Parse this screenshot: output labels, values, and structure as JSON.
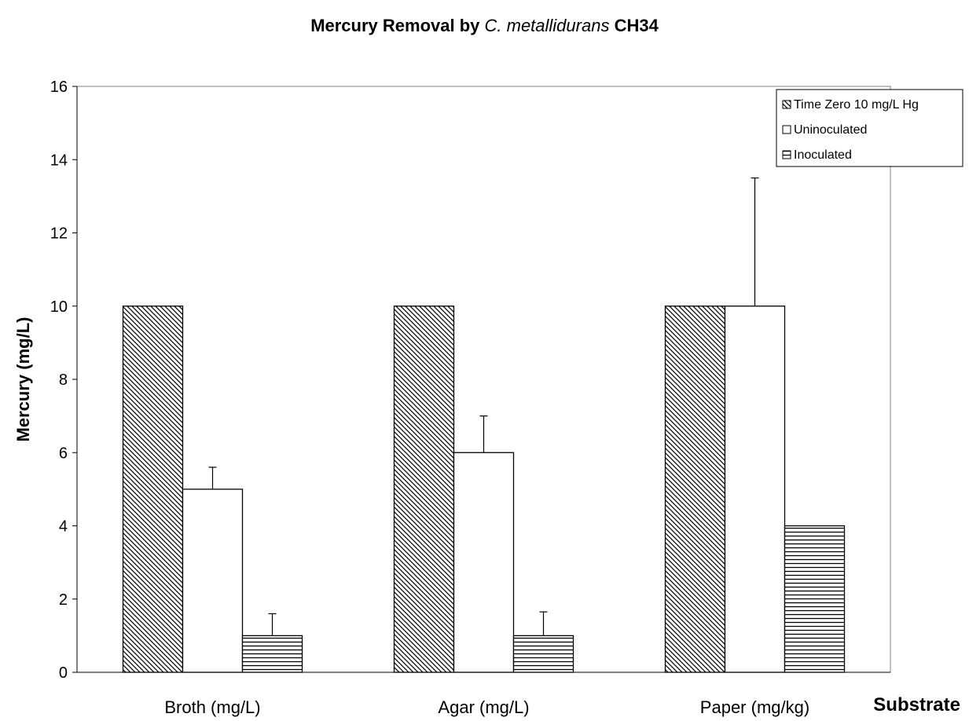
{
  "title": {
    "prefix": "Mercury Removal by ",
    "organism": "C. metallidurans",
    "suffix": " CH34"
  },
  "chart_data": {
    "type": "bar",
    "categories": [
      "Broth (mg/L)",
      "Agar (mg/L)",
      "Paper (mg/kg)"
    ],
    "series": [
      {
        "name": "Time Zero 10 mg/L Hg",
        "pattern": "diagonal",
        "values": [
          10,
          10,
          10
        ],
        "errors": [
          null,
          null,
          null
        ]
      },
      {
        "name": "Uninoculated",
        "pattern": "none",
        "values": [
          5,
          6,
          10
        ],
        "errors": [
          0.6,
          1.0,
          3.5
        ]
      },
      {
        "name": "Inoculated",
        "pattern": "horizontal",
        "values": [
          1,
          1,
          4
        ],
        "errors": [
          0.6,
          0.65,
          null
        ]
      }
    ],
    "xlabel": "Substrate",
    "ylabel": "Mercury (mg/L)",
    "ylim": [
      0,
      16
    ],
    "yticks": [
      0,
      2,
      4,
      6,
      8,
      10,
      12,
      14,
      16
    ],
    "grid": false,
    "legend_position": "top-right"
  },
  "colors": {
    "bar_stroke": "#000000",
    "pattern_line": "#000000",
    "plot_border": "#808080",
    "background": "#ffffff"
  }
}
